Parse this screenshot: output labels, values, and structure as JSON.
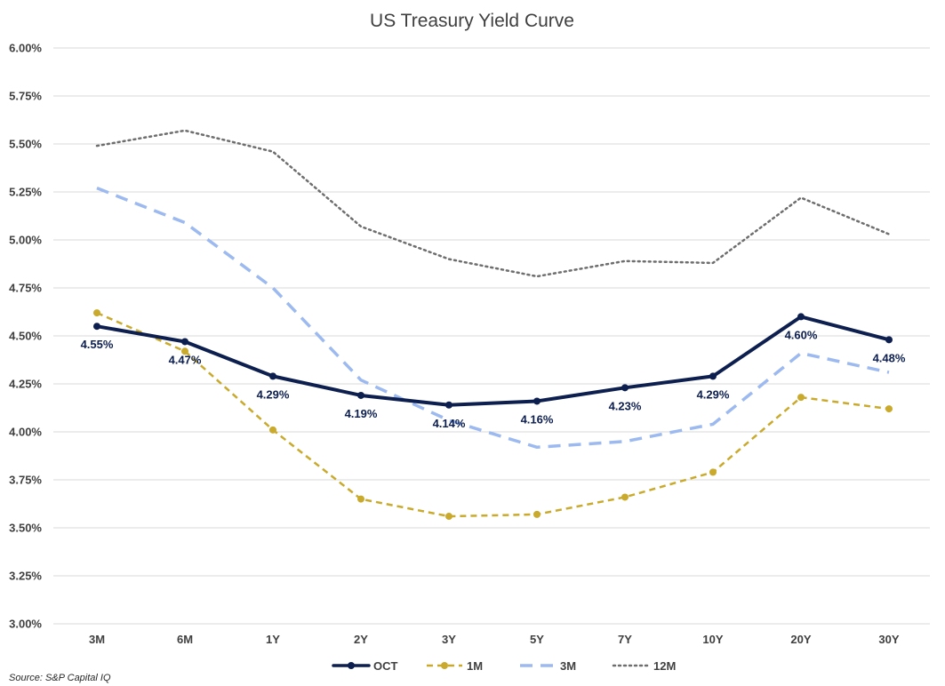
{
  "chart_data": {
    "type": "line",
    "title": "US Treasury Yield Curve",
    "xlabel": "",
    "ylabel": "",
    "categories": [
      "3M",
      "6M",
      "1Y",
      "2Y",
      "3Y",
      "5Y",
      "7Y",
      "10Y",
      "20Y",
      "30Y"
    ],
    "ylim": [
      3.0,
      6.0
    ],
    "yticks": [
      3.0,
      3.25,
      3.5,
      3.75,
      4.0,
      4.25,
      4.5,
      4.75,
      5.0,
      5.25,
      5.5,
      5.75,
      6.0
    ],
    "ytick_labels": [
      "3.00%",
      "3.25%",
      "3.50%",
      "3.75%",
      "4.00%",
      "4.25%",
      "4.50%",
      "4.75%",
      "5.00%",
      "5.25%",
      "5.50%",
      "5.75%",
      "6.00%"
    ],
    "grid": true,
    "legend_position": "bottom",
    "series": [
      {
        "name": "12M",
        "values": [
          5.49,
          5.57,
          5.46,
          5.07,
          4.9,
          4.81,
          4.89,
          4.88,
          5.22,
          5.03
        ],
        "color": "#6e6e6e",
        "style": "dotted",
        "markers": false
      },
      {
        "name": "3M",
        "values": [
          5.27,
          5.09,
          4.75,
          4.27,
          4.06,
          3.92,
          3.95,
          4.04,
          4.41,
          4.31
        ],
        "color": "#9dbaf0",
        "style": "dashed",
        "markers": false
      },
      {
        "name": "1M",
        "values": [
          4.62,
          4.42,
          4.01,
          3.65,
          3.56,
          3.57,
          3.66,
          3.79,
          4.18,
          4.12
        ],
        "color": "#c9aa2c",
        "style": "dashed",
        "markers": true
      },
      {
        "name": "OCT",
        "values": [
          4.55,
          4.47,
          4.29,
          4.19,
          4.14,
          4.16,
          4.23,
          4.29,
          4.6,
          4.48
        ],
        "color": "#0d1f4f",
        "style": "solid",
        "markers": true,
        "data_labels": [
          "4.55%",
          "4.47%",
          "4.29%",
          "4.19%",
          "4.14%",
          "4.16%",
          "4.23%",
          "4.29%",
          "4.60%",
          "4.48%"
        ]
      }
    ],
    "legend_order": [
      "OCT",
      "1M",
      "3M",
      "12M"
    ],
    "source": "Source: S&P Capital IQ"
  }
}
